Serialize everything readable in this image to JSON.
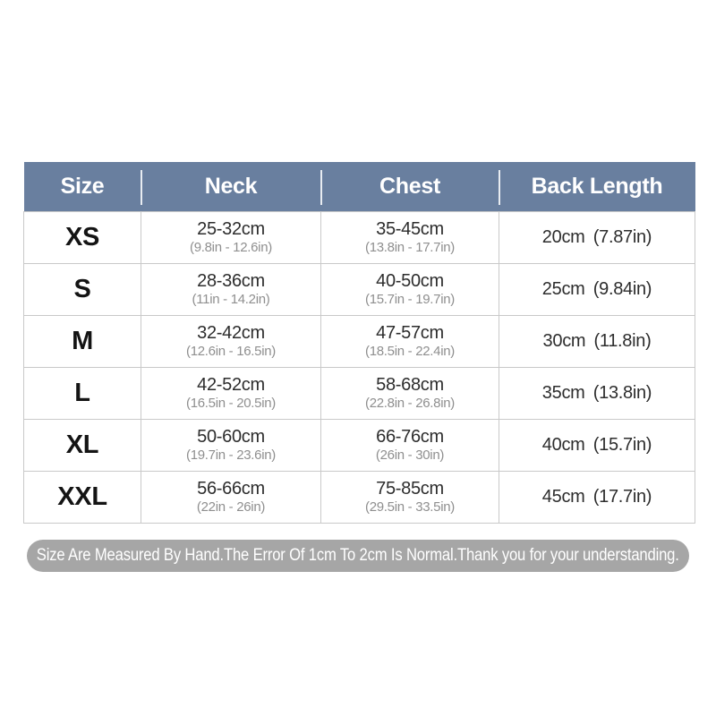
{
  "chart_data": {
    "type": "table",
    "title": "",
    "columns": [
      "Size",
      "Neck",
      "Chest",
      "Back Length"
    ],
    "rows": [
      {
        "size": "XS",
        "neck_cm": "25-32cm",
        "neck_in": "(9.8in - 12.6in)",
        "chest_cm": "35-45cm",
        "chest_in": "(13.8in - 17.7in)",
        "back_length": "20cm (7.87in)"
      },
      {
        "size": "S",
        "neck_cm": "28-36cm",
        "neck_in": "(11in - 14.2in)",
        "chest_cm": "40-50cm",
        "chest_in": "(15.7in - 19.7in)",
        "back_length": "25cm (9.84in)"
      },
      {
        "size": "M",
        "neck_cm": "32-42cm",
        "neck_in": "(12.6in - 16.5in)",
        "chest_cm": "47-57cm",
        "chest_in": "(18.5in - 22.4in)",
        "back_length": "30cm (11.8in)"
      },
      {
        "size": "L",
        "neck_cm": "42-52cm",
        "neck_in": "(16.5in - 20.5in)",
        "chest_cm": "58-68cm",
        "chest_in": "(22.8in - 26.8in)",
        "back_length": "35cm (13.8in)"
      },
      {
        "size": "XL",
        "neck_cm": "50-60cm",
        "neck_in": "(19.7in - 23.6in)",
        "chest_cm": "66-76cm",
        "chest_in": "(26in - 30in)",
        "back_length": "40cm (15.7in)"
      },
      {
        "size": "XXL",
        "neck_cm": "56-66cm",
        "neck_in": "(22in - 26in)",
        "chest_cm": "75-85cm",
        "chest_in": "(29.5in - 33.5in)",
        "back_length": "45cm (17.7in)"
      }
    ],
    "layout": {
      "grid": "light-gray cell borders",
      "header_position": "top row"
    }
  },
  "footer_note": "Size Are Measured By Hand.The Error Of 1cm To 2cm Is Normal.Thank you for your understanding.",
  "colors": {
    "header_bg": "#697f9f",
    "header_text": "#ffffff",
    "border": "#c9c9c9",
    "text_dark": "#2d2d2d",
    "text_sub": "#8f8f8f",
    "note_bg": "#a6a6a6",
    "note_text": "#ffffff"
  }
}
